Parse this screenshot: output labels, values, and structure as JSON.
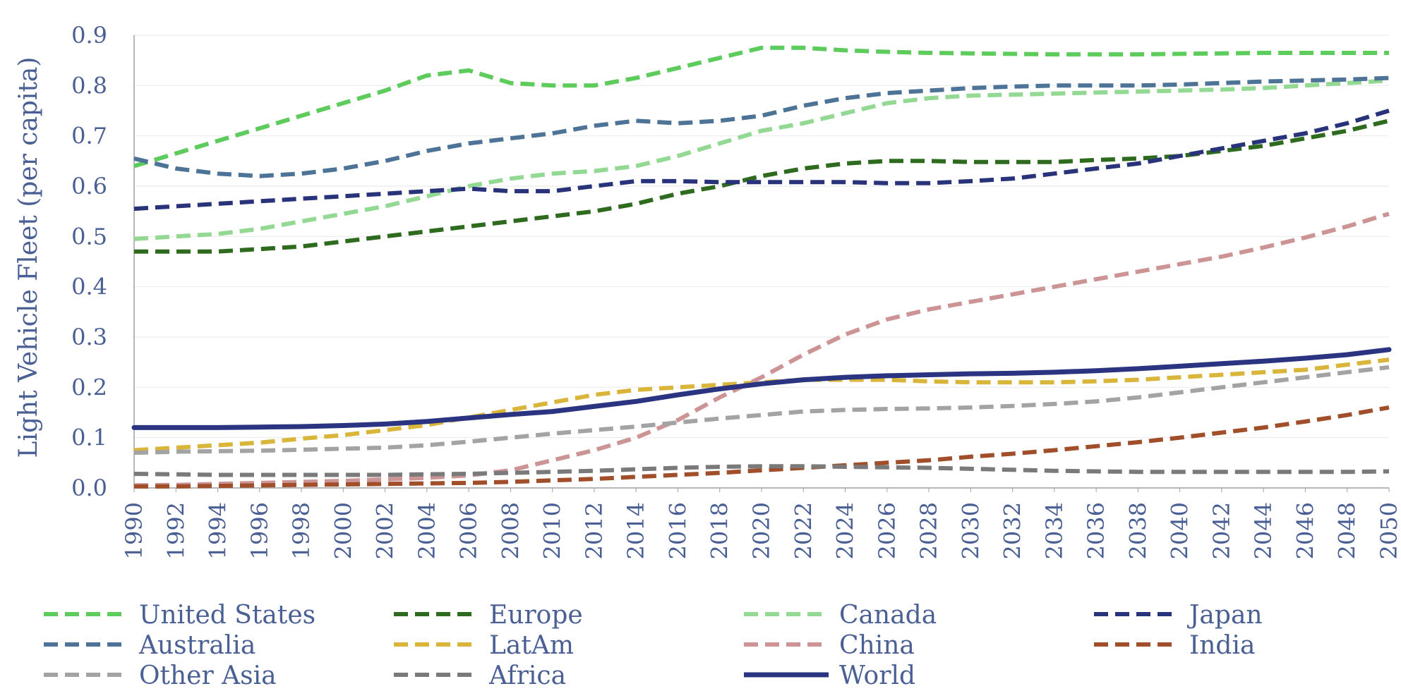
{
  "chart_data": {
    "type": "line",
    "title": "",
    "xlabel": "",
    "ylabel": "Light Vehicle Fleet (per capita)",
    "xlim": [
      1990,
      2050
    ],
    "ylim": [
      0,
      0.9
    ],
    "grid": "horizontal",
    "legend_position": "bottom",
    "x_ticks": [
      "1990",
      "1992",
      "1994",
      "1996",
      "1998",
      "2000",
      "2002",
      "2004",
      "2006",
      "2008",
      "2010",
      "2012",
      "2014",
      "2016",
      "2018",
      "2020",
      "2022",
      "2024",
      "2026",
      "2028",
      "2030",
      "2032",
      "2034",
      "2036",
      "2038",
      "2040",
      "2042",
      "2044",
      "2046",
      "2048",
      "2050"
    ],
    "y_ticks": [
      "0.0",
      "0.1",
      "0.2",
      "0.3",
      "0.4",
      "0.5",
      "0.6",
      "0.7",
      "0.8",
      "0.9"
    ],
    "x": [
      1990,
      1992,
      1994,
      1996,
      1998,
      2000,
      2002,
      2004,
      2006,
      2008,
      2010,
      2012,
      2014,
      2016,
      2018,
      2020,
      2022,
      2024,
      2026,
      2028,
      2030,
      2032,
      2034,
      2036,
      2038,
      2040,
      2042,
      2044,
      2046,
      2048,
      2050
    ],
    "series": [
      {
        "name": "United States",
        "color": "#5dcc5d",
        "dash": true,
        "values": [
          0.64,
          0.665,
          0.69,
          0.715,
          0.74,
          0.765,
          0.79,
          0.82,
          0.83,
          0.805,
          0.8,
          0.8,
          0.815,
          0.835,
          0.855,
          0.875,
          0.875,
          0.87,
          0.867,
          0.865,
          0.864,
          0.863,
          0.862,
          0.862,
          0.862,
          0.863,
          0.864,
          0.865,
          0.865,
          0.865,
          0.865
        ]
      },
      {
        "name": "Europe",
        "color": "#2e6b1e",
        "dash": true,
        "values": [
          0.47,
          0.47,
          0.47,
          0.475,
          0.48,
          0.49,
          0.5,
          0.51,
          0.52,
          0.53,
          0.54,
          0.55,
          0.565,
          0.585,
          0.6,
          0.62,
          0.635,
          0.645,
          0.65,
          0.65,
          0.648,
          0.648,
          0.648,
          0.652,
          0.655,
          0.66,
          0.67,
          0.68,
          0.695,
          0.71,
          0.73
        ]
      },
      {
        "name": "Canada",
        "color": "#93d993",
        "dash": true,
        "values": [
          0.495,
          0.5,
          0.505,
          0.515,
          0.53,
          0.545,
          0.56,
          0.58,
          0.6,
          0.615,
          0.625,
          0.63,
          0.64,
          0.66,
          0.685,
          0.71,
          0.725,
          0.745,
          0.765,
          0.775,
          0.78,
          0.782,
          0.784,
          0.786,
          0.788,
          0.79,
          0.792,
          0.795,
          0.8,
          0.805,
          0.81
        ]
      },
      {
        "name": "Japan",
        "color": "#28337a",
        "dash": true,
        "values": [
          0.555,
          0.56,
          0.565,
          0.57,
          0.575,
          0.58,
          0.585,
          0.59,
          0.595,
          0.59,
          0.59,
          0.6,
          0.61,
          0.61,
          0.608,
          0.608,
          0.608,
          0.608,
          0.606,
          0.606,
          0.61,
          0.615,
          0.625,
          0.635,
          0.645,
          0.66,
          0.675,
          0.69,
          0.705,
          0.725,
          0.75
        ]
      },
      {
        "name": "Australia",
        "color": "#4d7396",
        "dash": true,
        "values": [
          0.655,
          0.635,
          0.625,
          0.62,
          0.625,
          0.635,
          0.65,
          0.67,
          0.685,
          0.695,
          0.705,
          0.72,
          0.73,
          0.725,
          0.73,
          0.74,
          0.76,
          0.775,
          0.785,
          0.79,
          0.795,
          0.798,
          0.8,
          0.8,
          0.8,
          0.802,
          0.805,
          0.808,
          0.81,
          0.812,
          0.815
        ]
      },
      {
        "name": "LatAm",
        "color": "#d9b53a",
        "dash": true,
        "values": [
          0.075,
          0.08,
          0.085,
          0.09,
          0.098,
          0.105,
          0.115,
          0.125,
          0.14,
          0.155,
          0.17,
          0.185,
          0.195,
          0.2,
          0.205,
          0.21,
          0.215,
          0.215,
          0.215,
          0.212,
          0.21,
          0.21,
          0.21,
          0.212,
          0.215,
          0.22,
          0.225,
          0.23,
          0.235,
          0.245,
          0.255
        ]
      },
      {
        "name": "China",
        "color": "#cc9494",
        "dash": true,
        "values": [
          0.005,
          0.006,
          0.008,
          0.01,
          0.012,
          0.014,
          0.017,
          0.02,
          0.025,
          0.035,
          0.055,
          0.075,
          0.1,
          0.135,
          0.18,
          0.22,
          0.265,
          0.305,
          0.335,
          0.355,
          0.37,
          0.385,
          0.4,
          0.415,
          0.43,
          0.445,
          0.46,
          0.478,
          0.498,
          0.52,
          0.545
        ]
      },
      {
        "name": "India",
        "color": "#a14e2a",
        "dash": true,
        "values": [
          0.003,
          0.003,
          0.004,
          0.005,
          0.006,
          0.007,
          0.008,
          0.009,
          0.01,
          0.012,
          0.015,
          0.018,
          0.022,
          0.026,
          0.03,
          0.035,
          0.04,
          0.045,
          0.05,
          0.055,
          0.062,
          0.068,
          0.075,
          0.083,
          0.091,
          0.1,
          0.11,
          0.12,
          0.132,
          0.145,
          0.16
        ]
      },
      {
        "name": "Other Asia",
        "color": "#a3a3a3",
        "dash": true,
        "values": [
          0.07,
          0.072,
          0.073,
          0.074,
          0.076,
          0.078,
          0.08,
          0.085,
          0.092,
          0.1,
          0.108,
          0.115,
          0.122,
          0.13,
          0.138,
          0.145,
          0.152,
          0.155,
          0.157,
          0.158,
          0.16,
          0.163,
          0.167,
          0.172,
          0.18,
          0.19,
          0.2,
          0.21,
          0.22,
          0.23,
          0.24
        ]
      },
      {
        "name": "Africa",
        "color": "#7a7a7a",
        "dash": true,
        "values": [
          0.028,
          0.027,
          0.026,
          0.026,
          0.026,
          0.026,
          0.026,
          0.027,
          0.028,
          0.03,
          0.032,
          0.034,
          0.037,
          0.04,
          0.042,
          0.043,
          0.043,
          0.042,
          0.041,
          0.04,
          0.038,
          0.036,
          0.034,
          0.033,
          0.032,
          0.032,
          0.032,
          0.032,
          0.032,
          0.032,
          0.033
        ]
      },
      {
        "name": "World",
        "color": "#2b3480",
        "dash": false,
        "values": [
          0.12,
          0.12,
          0.12,
          0.121,
          0.122,
          0.124,
          0.127,
          0.132,
          0.139,
          0.146,
          0.152,
          0.162,
          0.172,
          0.185,
          0.197,
          0.207,
          0.215,
          0.22,
          0.223,
          0.225,
          0.227,
          0.228,
          0.23,
          0.233,
          0.237,
          0.242,
          0.247,
          0.252,
          0.258,
          0.265,
          0.275
        ]
      }
    ]
  }
}
